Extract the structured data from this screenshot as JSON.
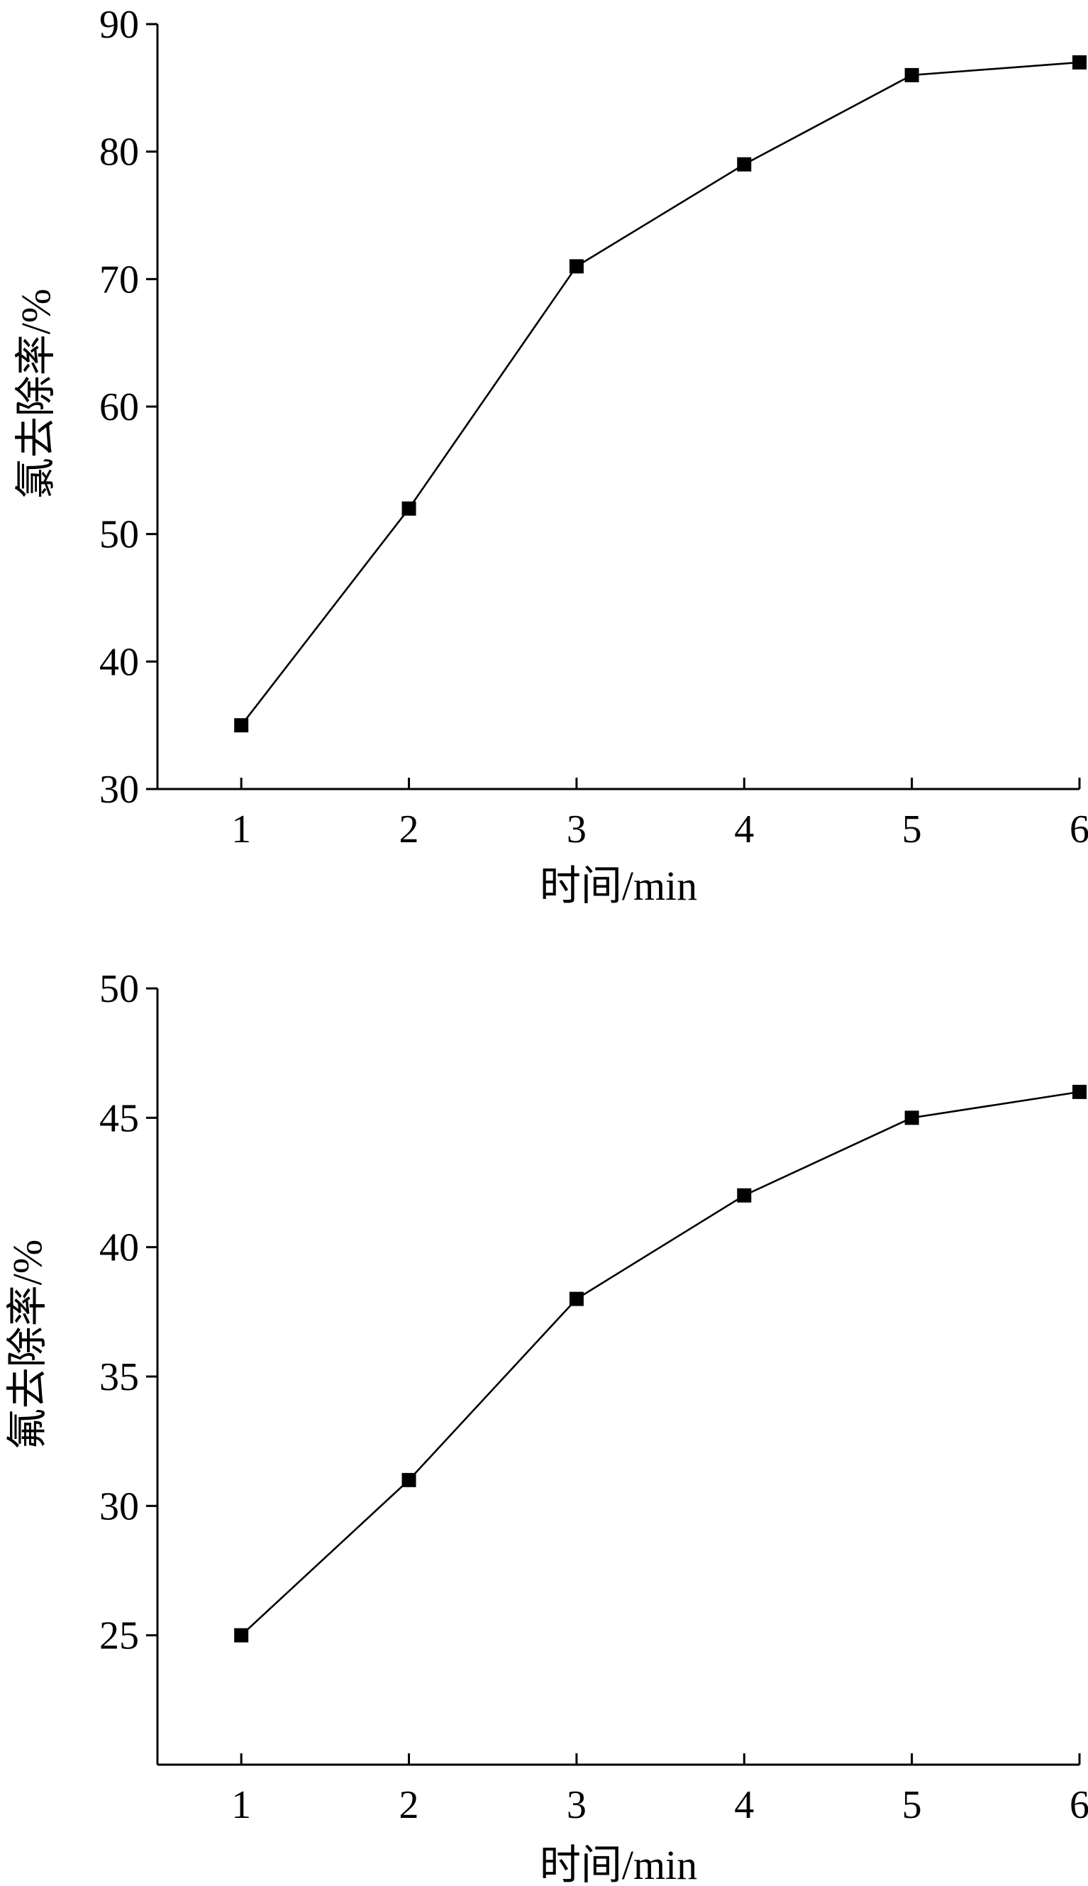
{
  "chart_data": [
    {
      "type": "line",
      "title": "",
      "xlabel": "时间/min",
      "ylabel": "氯去除率/%",
      "xlim": [
        0.5,
        6
      ],
      "ylim": [
        30,
        90
      ],
      "xticks": [
        1,
        2,
        3,
        4,
        5,
        6
      ],
      "yticks": [
        30,
        40,
        50,
        60,
        70,
        80,
        90
      ],
      "grid": false,
      "x": [
        1,
        2,
        3,
        4,
        5,
        6
      ],
      "values": [
        35,
        52,
        71,
        79,
        86,
        87
      ],
      "color": "#000000"
    },
    {
      "type": "line",
      "title": "",
      "xlabel": "时间/min",
      "ylabel": "氟去除率/%",
      "xlim": [
        0.5,
        6
      ],
      "ylim": [
        20,
        50
      ],
      "xticks": [
        1,
        2,
        3,
        4,
        5,
        6
      ],
      "yticks": [
        25,
        30,
        35,
        40,
        45,
        50
      ],
      "grid": false,
      "x": [
        1,
        2,
        3,
        4,
        5,
        6
      ],
      "values": [
        25,
        31,
        38,
        42,
        45,
        46
      ],
      "color": "#000000"
    }
  ]
}
